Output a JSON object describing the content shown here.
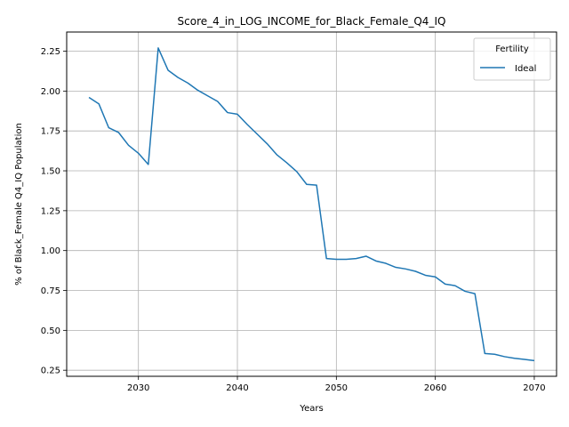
{
  "chart_data": {
    "type": "line",
    "title": "Score_4_in_LOG_INCOME_for_Black_Female_Q4_IQ",
    "xlabel": "Years",
    "ylabel": "% of Black_Female Q4_IQ Population",
    "xlim": [
      2022.75,
      2072.25
    ],
    "ylim": [
      0.212,
      2.37
    ],
    "xticks": [
      2030,
      2040,
      2050,
      2060,
      2070
    ],
    "yticks": [
      0.25,
      0.5,
      0.75,
      1.0,
      1.25,
      1.5,
      1.75,
      2.0,
      2.25
    ],
    "grid": true,
    "legend": {
      "title": "Fertility",
      "position": "top-right"
    },
    "series": [
      {
        "name": "Ideal",
        "color": "#1f77b4",
        "x": [
          2025,
          2026,
          2027,
          2028,
          2029,
          2030,
          2031,
          2032,
          2033,
          2034,
          2035,
          2036,
          2037,
          2038,
          2039,
          2040,
          2041,
          2042,
          2043,
          2044,
          2045,
          2046,
          2047,
          2048,
          2049,
          2050,
          2051,
          2052,
          2053,
          2054,
          2055,
          2056,
          2057,
          2058,
          2059,
          2060,
          2061,
          2062,
          2063,
          2064,
          2065,
          2066,
          2067,
          2068,
          2069,
          2070
        ],
        "values": [
          1.96,
          1.92,
          1.77,
          1.74,
          1.66,
          1.61,
          1.54,
          2.27,
          2.13,
          2.085,
          2.05,
          2.005,
          1.97,
          1.935,
          1.865,
          1.855,
          1.79,
          1.73,
          1.67,
          1.6,
          1.55,
          1.495,
          1.415,
          1.41,
          0.95,
          0.945,
          0.945,
          0.95,
          0.965,
          0.935,
          0.92,
          0.895,
          0.885,
          0.87,
          0.845,
          0.835,
          0.79,
          0.78,
          0.745,
          0.73,
          0.355,
          0.35,
          0.335,
          0.325,
          0.318,
          0.31
        ]
      }
    ]
  }
}
